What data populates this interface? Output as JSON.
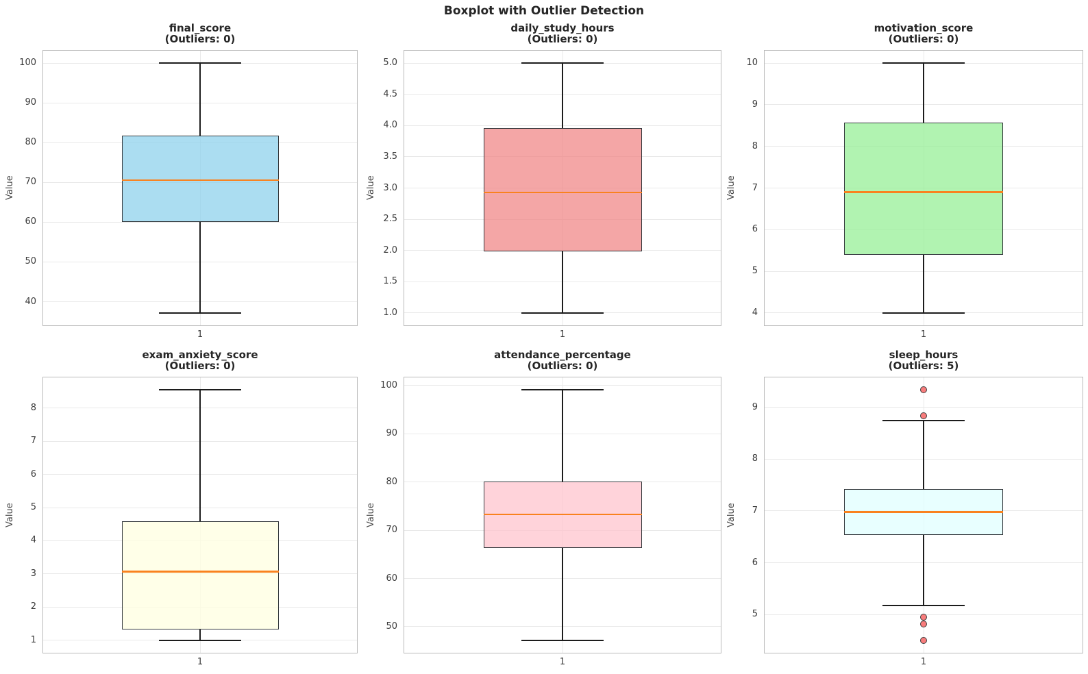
{
  "figure": {
    "title": "Boxplot with Outlier Detection",
    "background_color": "#ffffff",
    "grid_color": "#e9e9e9",
    "spine_color": "#b9b9b9",
    "title_color": "#262626",
    "median_color": "#f9821f",
    "whisker_color": "#1c1c1c",
    "box_edge_color": "#33383c",
    "outlier_fill_color": "#f87c7c",
    "outlier_edge_color": "#3c3c3c"
  },
  "chart_data": [
    {
      "type": "box",
      "name": "final_score",
      "title": "final_score",
      "subtitle": "(Outliers: 0)",
      "outlier_count": 0,
      "ylabel": "Value",
      "xtick_label": "1",
      "ylim": [
        34.06,
        103.14
      ],
      "yticks": [
        {
          "v": 100,
          "label": "100"
        },
        {
          "v": 90,
          "label": "90"
        },
        {
          "v": 80,
          "label": "80"
        },
        {
          "v": 70,
          "label": "70"
        },
        {
          "v": 60,
          "label": "60"
        },
        {
          "v": 50,
          "label": "50"
        },
        {
          "v": 40,
          "label": "40"
        }
      ],
      "stats": {
        "whisker_low": 37.2,
        "q1": 60.1,
        "median": 70.6,
        "q3": 81.8,
        "whisker_high": 100.0
      },
      "outliers": [],
      "fill": "rgba(135,206,235,0.7)",
      "fill_name": "skyblue"
    },
    {
      "type": "box",
      "name": "daily_study_hours",
      "title": "daily_study_hours",
      "subtitle": "(Outliers: 0)",
      "outlier_count": 0,
      "ylabel": "Value",
      "xtick_label": "1",
      "ylim": [
        0.8,
        5.2
      ],
      "yticks": [
        {
          "v": 5.0,
          "label": "5.0"
        },
        {
          "v": 4.5,
          "label": "4.5"
        },
        {
          "v": 4.0,
          "label": "4.0"
        },
        {
          "v": 3.5,
          "label": "3.5"
        },
        {
          "v": 3.0,
          "label": "3.0"
        },
        {
          "v": 2.5,
          "label": "2.5"
        },
        {
          "v": 2.0,
          "label": "2.0"
        },
        {
          "v": 1.5,
          "label": "1.5"
        },
        {
          "v": 1.0,
          "label": "1.0"
        }
      ],
      "stats": {
        "whisker_low": 1.0,
        "q1": 1.98,
        "median": 2.93,
        "q3": 3.96,
        "whisker_high": 5.0
      },
      "outliers": [],
      "fill": "rgba(240,128,128,0.7)",
      "fill_name": "lightcoral"
    },
    {
      "type": "box",
      "name": "motivation_score",
      "title": "motivation_score",
      "subtitle": "(Outliers: 0)",
      "outlier_count": 0,
      "ylabel": "Value",
      "xtick_label": "1",
      "ylim": [
        3.7,
        10.3
      ],
      "yticks": [
        {
          "v": 10,
          "label": "10"
        },
        {
          "v": 9,
          "label": "9"
        },
        {
          "v": 8,
          "label": "8"
        },
        {
          "v": 7,
          "label": "7"
        },
        {
          "v": 6,
          "label": "6"
        },
        {
          "v": 5,
          "label": "5"
        },
        {
          "v": 4,
          "label": "4"
        }
      ],
      "stats": {
        "whisker_low": 4.0,
        "q1": 5.4,
        "median": 6.9,
        "q3": 8.57,
        "whisker_high": 10.0
      },
      "outliers": [],
      "fill": "rgba(144,238,144,0.7)",
      "fill_name": "lightgreen"
    },
    {
      "type": "box",
      "name": "exam_anxiety_score",
      "title": "exam_anxiety_score",
      "subtitle": "(Outliers: 0)",
      "outlier_count": 0,
      "ylabel": "Value",
      "xtick_label": "1",
      "ylim": [
        0.62,
        8.93
      ],
      "yticks": [
        {
          "v": 8,
          "label": "8"
        },
        {
          "v": 7,
          "label": "7"
        },
        {
          "v": 6,
          "label": "6"
        },
        {
          "v": 5,
          "label": "5"
        },
        {
          "v": 4,
          "label": "4"
        },
        {
          "v": 3,
          "label": "3"
        },
        {
          "v": 2,
          "label": "2"
        },
        {
          "v": 1,
          "label": "1"
        }
      ],
      "stats": {
        "whisker_low": 1.0,
        "q1": 1.33,
        "median": 3.07,
        "q3": 4.58,
        "whisker_high": 8.55
      },
      "outliers": [],
      "fill": "rgba(255,255,224,0.75)",
      "fill_name": "lightyellow"
    },
    {
      "type": "box",
      "name": "attendance_percentage",
      "title": "attendance_percentage",
      "subtitle": "(Outliers: 0)",
      "outlier_count": 0,
      "ylabel": "Value",
      "xtick_label": "1",
      "ylim": [
        44.6,
        101.7
      ],
      "yticks": [
        {
          "v": 100,
          "label": "100"
        },
        {
          "v": 90,
          "label": "90"
        },
        {
          "v": 80,
          "label": "80"
        },
        {
          "v": 70,
          "label": "70"
        },
        {
          "v": 60,
          "label": "60"
        },
        {
          "v": 50,
          "label": "50"
        }
      ],
      "stats": {
        "whisker_low": 47.2,
        "q1": 66.3,
        "median": 73.3,
        "q3": 80.1,
        "whisker_high": 99.1
      },
      "outliers": [],
      "fill": "rgba(255,192,203,0.7)",
      "fill_name": "pink"
    },
    {
      "type": "box",
      "name": "sleep_hours",
      "title": "sleep_hours",
      "subtitle": "(Outliers: 5)",
      "outlier_count": 5,
      "ylabel": "Value",
      "xtick_label": "1",
      "ylim": [
        4.26,
        9.58
      ],
      "yticks": [
        {
          "v": 9,
          "label": "9"
        },
        {
          "v": 8,
          "label": "8"
        },
        {
          "v": 7,
          "label": "7"
        },
        {
          "v": 6,
          "label": "6"
        },
        {
          "v": 5,
          "label": "5"
        }
      ],
      "stats": {
        "whisker_low": 5.17,
        "q1": 6.53,
        "median": 6.98,
        "q3": 7.42,
        "whisker_high": 8.75
      },
      "outliers": [
        9.34,
        8.84,
        4.95,
        4.82,
        4.5
      ],
      "fill": "rgba(224,255,255,0.75)",
      "fill_name": "lightcyan"
    }
  ]
}
